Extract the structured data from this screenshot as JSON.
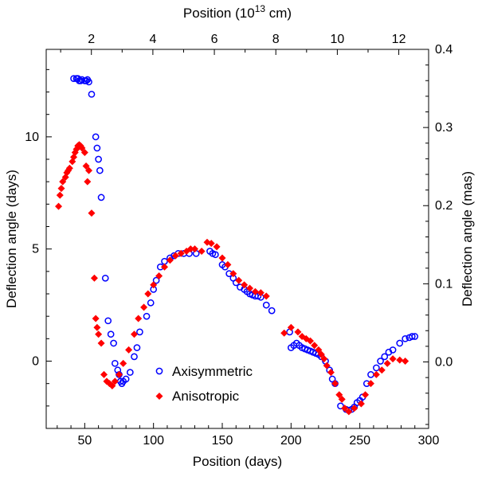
{
  "chart_data": {
    "type": "scatter",
    "xlabel": "Position (days)",
    "ylabel_left": "Deflection angle (days)",
    "xlabel_top_prefix": "Position (10",
    "xlabel_top_sup": "13",
    "xlabel_top_suffix": " cm)",
    "ylabel_right": "Deflection angle (mas)",
    "xlim": [
      22,
      300
    ],
    "ylim": [
      -3,
      13.9
    ],
    "top_lim": [
      0.53,
      12.97
    ],
    "right_lim": [
      -0.0851,
      0.4
    ],
    "x_ticks": [
      50,
      100,
      150,
      200,
      250,
      300
    ],
    "y_ticks": [
      0,
      5,
      10
    ],
    "top_ticks": [
      2,
      4,
      6,
      8,
      10,
      12
    ],
    "right_ticks": [
      "0.0",
      "0.1",
      "0.2",
      "0.3",
      "0.4"
    ],
    "legend_position": "lower-center",
    "series": [
      {
        "name": "Axisymmetric",
        "marker": "open-circle",
        "color": "#0000ff",
        "x": [
          42,
          44,
          45,
          46,
          47,
          48,
          50,
          51,
          52,
          53,
          55,
          58,
          59,
          60,
          61,
          62,
          65,
          67,
          69,
          71,
          72,
          74,
          75,
          76,
          77,
          78,
          80,
          83,
          86,
          88,
          90,
          95,
          98,
          100,
          102,
          105,
          108,
          112,
          115,
          118,
          122,
          126,
          131,
          141,
          143,
          145,
          150,
          152,
          155,
          158,
          160,
          163,
          166,
          168,
          170,
          172,
          174,
          176,
          178,
          182,
          186,
          199,
          200,
          202,
          204,
          206,
          208,
          210,
          212,
          214,
          216,
          218,
          220,
          222,
          225,
          228,
          230,
          232,
          236,
          240,
          242,
          244,
          246,
          248,
          250,
          252,
          255,
          258,
          262,
          265,
          268,
          271,
          274,
          279,
          283,
          286,
          288,
          290
        ],
        "y": [
          12.6,
          12.6,
          12.6,
          12.5,
          12.5,
          12.55,
          12.5,
          12.5,
          12.55,
          12.45,
          11.9,
          10,
          9.5,
          9,
          8.5,
          7.3,
          3.7,
          1.8,
          1.2,
          0.8,
          -0.1,
          -0.4,
          -0.6,
          -0.9,
          -1,
          -0.9,
          -0.8,
          -0.5,
          0.2,
          0.6,
          1.3,
          2,
          2.6,
          3.2,
          3.6,
          4.2,
          4.45,
          4.6,
          4.7,
          4.8,
          4.8,
          4.8,
          4.8,
          4.9,
          4.8,
          4.75,
          4.3,
          4.2,
          3.9,
          3.7,
          3.5,
          3.3,
          3.2,
          3.1,
          3,
          2.95,
          2.9,
          2.9,
          2.85,
          2.5,
          2.25,
          1.3,
          0.6,
          0.7,
          0.8,
          0.7,
          0.6,
          0.55,
          0.5,
          0.45,
          0.4,
          0.35,
          0.3,
          0.2,
          0,
          -0.4,
          -0.8,
          -1,
          -2,
          -2.15,
          -2.2,
          -2.15,
          -2.05,
          -1.85,
          -1.75,
          -1.6,
          -1,
          -0.6,
          -0.3,
          0,
          0.2,
          0.4,
          0.5,
          0.8,
          1,
          1.05,
          1.1,
          1.1
        ]
      },
      {
        "name": "Anisotropic",
        "marker": "filled-diamond",
        "color": "#ff0000",
        "x": [
          31,
          32,
          33,
          34,
          36,
          37,
          38,
          39,
          41,
          42,
          43,
          44,
          45,
          46,
          47,
          48,
          50,
          51,
          52,
          53,
          55,
          57,
          58,
          59,
          60,
          62,
          64,
          66,
          68,
          70,
          72,
          75,
          78,
          82,
          86,
          89,
          93,
          96,
          100,
          104,
          108,
          112,
          116,
          120,
          124,
          127,
          130,
          135,
          139,
          142,
          146,
          150,
          154,
          158,
          162,
          166,
          170,
          174,
          178,
          182,
          195,
          200,
          205,
          208,
          211,
          214,
          217,
          220,
          222,
          224,
          226,
          229,
          232,
          235,
          237,
          239,
          242,
          246,
          251,
          254,
          258,
          262,
          266,
          270,
          274,
          279,
          283
        ],
        "y": [
          6.9,
          7.4,
          7.7,
          8,
          8.2,
          8.4,
          8.5,
          8.6,
          8.9,
          9.1,
          9.3,
          9.45,
          9.6,
          9.65,
          9.6,
          9.5,
          9.3,
          8.7,
          8,
          8.5,
          6.6,
          3.7,
          1.9,
          1.5,
          1.2,
          0.8,
          -0.6,
          -0.9,
          -1,
          -1.1,
          -0.9,
          -0.6,
          -0.1,
          0.5,
          1.2,
          1.9,
          2.4,
          3,
          3.4,
          3.8,
          4.2,
          4.5,
          4.7,
          4.8,
          4.9,
          5,
          5,
          4.9,
          5.3,
          5.25,
          5.1,
          4.6,
          4.3,
          3.9,
          3.6,
          3.4,
          3.25,
          3.1,
          3.05,
          2.9,
          1.25,
          1.5,
          1.3,
          1.1,
          1,
          0.9,
          0.7,
          0.5,
          0.3,
          0.1,
          -0.2,
          -0.5,
          -1,
          -1.5,
          -1.7,
          -2.1,
          -2.25,
          -2.1,
          -1.9,
          -1.5,
          -1,
          -0.6,
          -0.4,
          -0.1,
          0.1,
          0.05,
          0
        ]
      }
    ]
  }
}
